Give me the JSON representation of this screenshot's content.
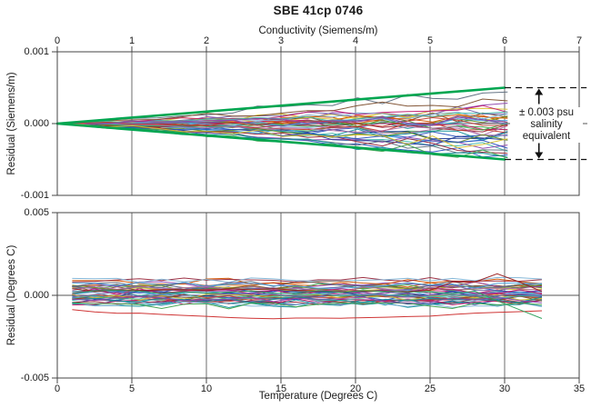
{
  "title": "SBE 41cp 0746",
  "colors": {
    "background": "#ffffff",
    "text": "#1a1a1a",
    "grid": "#6e6e6e",
    "frame": "#444444",
    "zero_line": "#555555",
    "envelope_green": "#00a650",
    "annotation_ink": "#111111"
  },
  "trace_palette": [
    "#c03a2b",
    "#2a52be",
    "#14919b",
    "#3fa34d",
    "#8e44ad",
    "#d7c02f",
    "#d35400",
    "#c2186b",
    "#1f3a93",
    "#7fb3d5",
    "#7d4e2d",
    "#5d6d7e",
    "#45b8ac",
    "#b06fa8",
    "#6b8e23",
    "#99283c",
    "#4aa3df",
    "#7162a8"
  ],
  "chart_data": [
    {
      "id": "conductivity-residual-plot",
      "type": "line",
      "xlabel": "Conductivity (Siemens/m)",
      "xlabel_position": "top",
      "ylabel": "Residual (Siemens/m)",
      "xlim": [
        0,
        7
      ],
      "xticks": [
        0,
        1,
        2,
        3,
        4,
        5,
        6,
        7
      ],
      "ylim": [
        -0.001,
        0.001
      ],
      "yticks": [
        0.001,
        0,
        -0.001
      ],
      "ytick_labels": [
        "0.001",
        "0.000",
        "-0.001"
      ],
      "grid": "vertical-gridlines-plus-zero-line",
      "envelope": {
        "label": "± 0.003 psu salinity equivalent",
        "lines": [
          {
            "points": [
              [
                0,
                0
              ],
              [
                6,
                0.0005
              ]
            ]
          },
          {
            "points": [
              [
                0,
                0
              ],
              [
                6,
                -0.0005
              ]
            ]
          }
        ]
      },
      "annotation": {
        "text_lines": [
          "± 0.003 psu",
          "salinity",
          "equivalent"
        ],
        "dashed_levels": [
          0.0005,
          -0.0005
        ],
        "dashed_x_range": [
          6.0,
          7.1
        ],
        "arrow_x": 6.46
      },
      "residual_traces": {
        "count": 42,
        "x_start": 0,
        "x_end": 6.04,
        "points_per_trace": 19,
        "typical_spread_at_end": 0.0003,
        "max_abs_at_end": 0.00046,
        "seed": 11,
        "description": "unlabeled multicolor calibration residual traces fanning out from zero at 0 S/m, staying inside the green envelope"
      }
    },
    {
      "id": "temperature-residual-plot",
      "type": "line",
      "xlabel": "Temperature (Degrees C)",
      "xlabel_position": "bottom",
      "ylabel": "Residual (Degrees C)",
      "xlim": [
        0,
        35
      ],
      "xticks": [
        0,
        5,
        10,
        15,
        20,
        25,
        30,
        35
      ],
      "ylim": [
        -0.005,
        0.005
      ],
      "yticks": [
        0.005,
        0,
        -0.005
      ],
      "ytick_labels": [
        "0.005",
        "0.000",
        "-0.005"
      ],
      "grid": "vertical-gridlines-plus-zero-line",
      "residual_traces": {
        "count": 42,
        "x_start": 1,
        "x_end": 32.5,
        "points_per_trace": 22,
        "typical_band": [
          -0.0007,
          0.0011
        ],
        "seed": 23,
        "description": "unlabeled multicolor calibration residual traces hugging zero between 1 and 32.5 degrees C"
      },
      "notable_outliers": [
        {
          "shape": "low-arc",
          "edge_value": -0.0009,
          "min_value": -0.0014,
          "color": "#cc2a2a"
        },
        {
          "shape": "spike",
          "x_peak": 29,
          "peak_value": 0.0013,
          "base_value": 0.0003,
          "color": "#9b1c1c"
        },
        {
          "shape": "end-dip",
          "dip_from_x": 28,
          "end_value": -0.0014,
          "base_value": 0.0002,
          "color": "#2aa05a"
        }
      ]
    }
  ]
}
